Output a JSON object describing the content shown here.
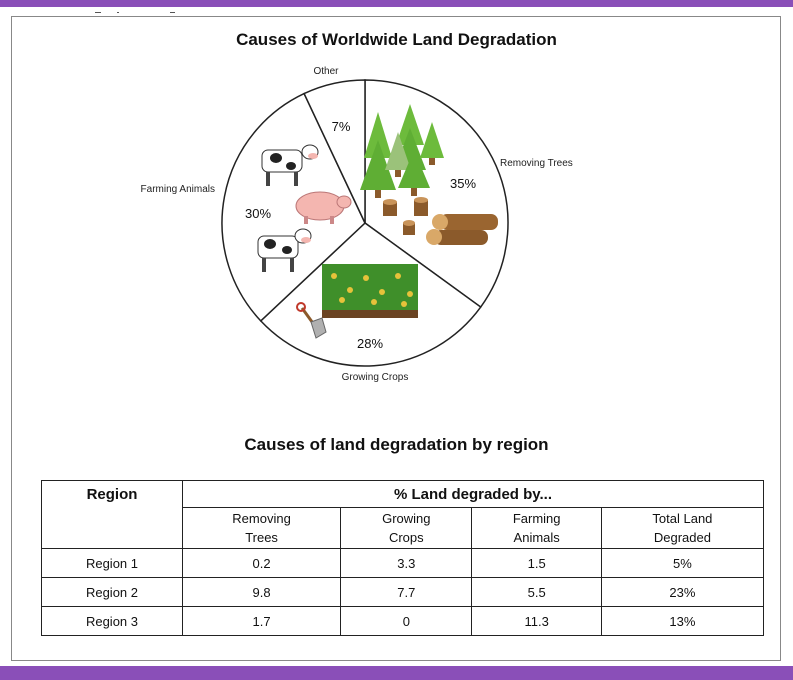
{
  "chart_data": {
    "type": "pie",
    "title": "Causes of Worldwide Land Degradation",
    "slices": [
      {
        "label": "Removing Trees",
        "value": 35,
        "value_label": "35%",
        "color": "#ffffff"
      },
      {
        "label": "Growing Crops",
        "value": 28,
        "value_label": "28%",
        "color": "#ffffff"
      },
      {
        "label": "Farming Animals",
        "value": 30,
        "value_label": "30%",
        "color": "#ffffff"
      },
      {
        "label": "Other",
        "value": 7,
        "value_label": "7%",
        "color": "#ffffff"
      }
    ]
  },
  "table": {
    "title": "Causes of land degradation by region",
    "header_region": "Region",
    "header_group": "% Land degraded by...",
    "columns": [
      {
        "line1": "Removing",
        "line2": "Trees"
      },
      {
        "line1": "Growing",
        "line2": "Crops"
      },
      {
        "line1": "Farming",
        "line2": "Animals"
      },
      {
        "line1": "Total Land",
        "line2": "Degraded"
      }
    ],
    "rows": [
      {
        "region": "Region 1",
        "values": [
          "0.2",
          "3.3",
          "1.5",
          "5%"
        ]
      },
      {
        "region": "Region 2",
        "values": [
          "9.8",
          "7.7",
          "5.5",
          "23%"
        ]
      },
      {
        "region": "Region 3",
        "values": [
          "1.7",
          "0",
          "11.3",
          "13%"
        ]
      }
    ]
  },
  "colors": {
    "accent_bar": "#8a4fb8",
    "tree_green": "#6dbb3c",
    "trunk_brown": "#8b5a2b",
    "pig_pink": "#f4b6b0",
    "crop_green": "#3f8f2a"
  }
}
